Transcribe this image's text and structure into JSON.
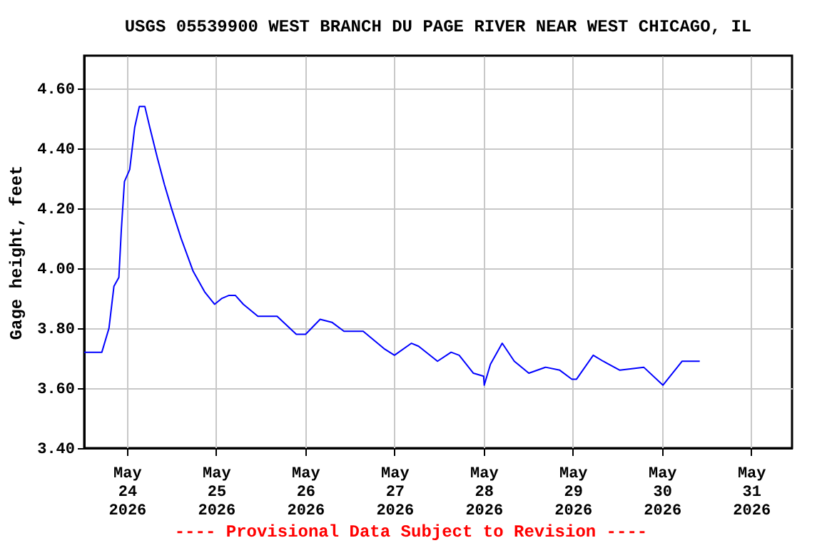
{
  "chart_data": {
    "type": "line",
    "title": "USGS 05539900 WEST BRANCH DU PAGE RIVER NEAR WEST CHICAGO, IL",
    "ylabel": "Gage height, feet",
    "annotations": [
      "---- Provisional Data Subject to Revision ----"
    ],
    "x": [
      "2026-05-23T12:30",
      "2026-05-23T17:15",
      "2026-05-23T19:10",
      "2026-05-23T20:30",
      "2026-05-23T21:50",
      "2026-05-23T22:30",
      "2026-05-23T23:20",
      "2026-05-24T00:45",
      "2026-05-24T02:05",
      "2026-05-24T03:20",
      "2026-05-24T04:50",
      "2026-05-24T06:10",
      "2026-05-24T08:10",
      "2026-05-24T10:05",
      "2026-05-24T12:00",
      "2026-05-24T14:35",
      "2026-05-24T17:50",
      "2026-05-24T21:00",
      "2026-05-24T23:35",
      "2026-05-25T01:35",
      "2026-05-25T03:30",
      "2026-05-25T05:10",
      "2026-05-25T07:20",
      "2026-05-25T11:15",
      "2026-05-25T16:25",
      "2026-05-25T21:35",
      "2026-05-26T00:05",
      "2026-05-26T04:00",
      "2026-05-26T07:10",
      "2026-05-26T10:25",
      "2026-05-26T15:35",
      "2026-05-26T21:25",
      "2026-05-27T00:00",
      "2026-05-27T04:35",
      "2026-05-27T06:30",
      "2026-05-27T11:35",
      "2026-05-27T15:15",
      "2026-05-27T17:25",
      "2026-05-27T21:15",
      "2026-05-28T00:00",
      "2026-05-28T00:10",
      "2026-05-28T01:50",
      "2026-05-28T05:00",
      "2026-05-28T08:15",
      "2026-05-28T12:10",
      "2026-05-28T16:40",
      "2026-05-28T20:30",
      "2026-05-28T23:45",
      "2026-05-29T01:00",
      "2026-05-29T05:30",
      "2026-05-29T08:10",
      "2026-05-29T12:40",
      "2026-05-29T19:05",
      "2026-05-30T00:15",
      "2026-05-30T05:25",
      "2026-05-30T10:10"
    ],
    "series": [
      {
        "color": "#0000ff",
        "values": [
          3.72,
          3.72,
          3.8,
          3.94,
          3.97,
          4.13,
          4.29,
          4.33,
          4.47,
          4.54,
          4.54,
          4.47,
          4.37,
          4.28,
          4.2,
          4.1,
          3.99,
          3.92,
          3.88,
          3.9,
          3.91,
          3.91,
          3.88,
          3.84,
          3.84,
          3.78,
          3.78,
          3.83,
          3.82,
          3.79,
          3.79,
          3.73,
          3.71,
          3.75,
          3.74,
          3.69,
          3.72,
          3.71,
          3.65,
          3.64,
          3.61,
          3.68,
          3.75,
          3.69,
          3.65,
          3.67,
          3.66,
          3.63,
          3.63,
          3.71,
          3.69,
          3.66,
          3.67,
          3.61,
          3.69,
          3.69
        ]
      }
    ],
    "xlim": [
      "2026-05-23T12:30",
      "2026-05-31T11:00"
    ],
    "xticks": [
      {
        "value": "2026-05-24",
        "label": "May 24 2026"
      },
      {
        "value": "2026-05-25",
        "label": "May 25 2026"
      },
      {
        "value": "2026-05-26",
        "label": "May 26 2026"
      },
      {
        "value": "2026-05-27",
        "label": "May 27 2026"
      },
      {
        "value": "2026-05-28",
        "label": "May 28 2026"
      },
      {
        "value": "2026-05-29",
        "label": "May 29 2026"
      },
      {
        "value": "2026-05-30",
        "label": "May 30 2026"
      },
      {
        "value": "2026-05-31",
        "label": "May 31 2026"
      }
    ],
    "ylim": [
      3.4,
      4.71
    ],
    "yticks": [
      {
        "value": 3.4,
        "label": "3.40"
      },
      {
        "value": 3.6,
        "label": "3.60"
      },
      {
        "value": 3.8,
        "label": "3.80"
      },
      {
        "value": 4.0,
        "label": "4.00"
      },
      {
        "value": 4.2,
        "label": "4.20"
      },
      {
        "value": 4.4,
        "label": "4.40"
      },
      {
        "value": 4.6,
        "label": "4.60"
      }
    ],
    "grid": true,
    "marker": "none",
    "line_style": "solid"
  }
}
